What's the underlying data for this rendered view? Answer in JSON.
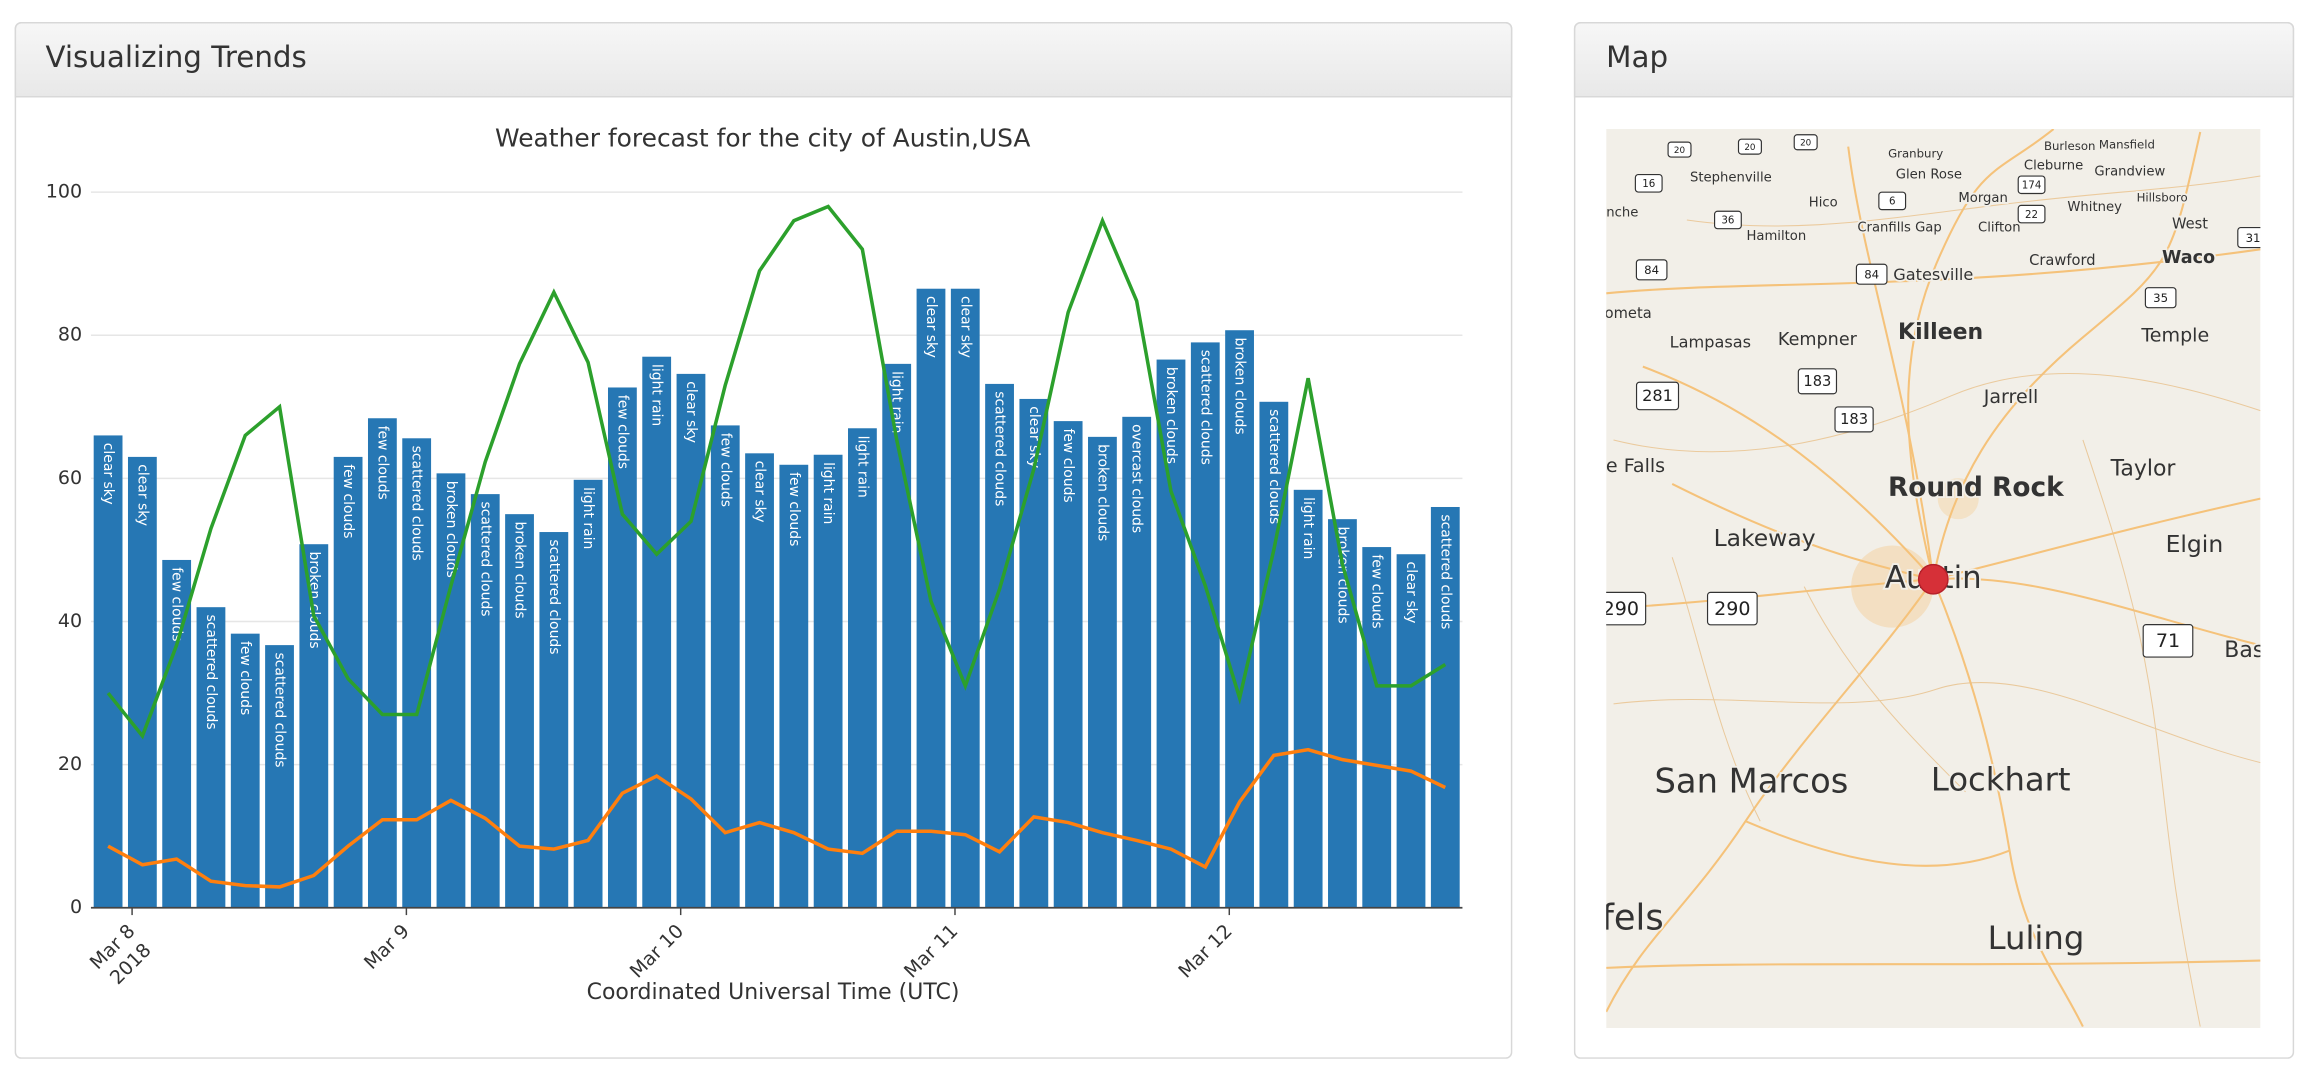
{
  "panels": {
    "left": {
      "title": "Visualizing Trends"
    },
    "right": {
      "title": "Map"
    }
  },
  "chart_data": {
    "type": "bar",
    "title": "Weather forecast for the city of Austin,USA",
    "x_label": "Coordinated Universal Time (UTC)",
    "categories": [
      null,
      null,
      null,
      null,
      null,
      null,
      null,
      null,
      null,
      null,
      null,
      null,
      null,
      null,
      null,
      null,
      null,
      null,
      null,
      null,
      null,
      null,
      null,
      null,
      null,
      null,
      null,
      null,
      null,
      null,
      null,
      null,
      null,
      null,
      null,
      null,
      null,
      null,
      null,
      null
    ],
    "xlim": [
      0,
      40
    ],
    "xticks": [
      {
        "value": 1.2,
        "label": "Mar 8",
        "sublabel": "2018"
      },
      {
        "value": 9.2,
        "label": "Mar 9"
      },
      {
        "value": 17.2,
        "label": "Mar 10"
      },
      {
        "value": 25.2,
        "label": "Mar 11"
      },
      {
        "value": 33.2,
        "label": "Mar 12"
      }
    ],
    "ylim": [
      0,
      100
    ],
    "yticks": [
      0,
      20,
      40,
      60,
      80,
      100
    ],
    "grid": true,
    "series": [
      {
        "type": "bar",
        "color": "#2677b4",
        "values": [
          66,
          63,
          48.6,
          42,
          38.3,
          36.7,
          50.8,
          63,
          68.4,
          65.6,
          60.7,
          57.8,
          55,
          52.5,
          59.8,
          72.7,
          77,
          74.6,
          67.4,
          63.5,
          61.9,
          63.3,
          67,
          76,
          86.5,
          86.5,
          73.2,
          71.1,
          68,
          65.8,
          68.6,
          76.6,
          79,
          80.7,
          70.7,
          58.4,
          54.3,
          50.4,
          49.4,
          56
        ],
        "bar_labels": [
          "clear sky",
          "clear sky",
          "few clouds",
          "scattered clouds",
          "few clouds",
          "scattered clouds",
          "broken clouds",
          "few clouds",
          "few clouds",
          "scattered clouds",
          "broken clouds",
          "scattered clouds",
          "broken clouds",
          "scattered clouds",
          "light rain",
          "few clouds",
          "light rain",
          "clear sky",
          "few clouds",
          "clear sky",
          "few clouds",
          "light rain",
          "light rain",
          "light rain",
          "clear sky",
          "clear sky",
          "scattered clouds",
          "clear sky",
          "few clouds",
          "broken clouds",
          "overcast clouds",
          "broken clouds",
          "scattered clouds",
          "broken clouds",
          "scattered clouds",
          "light rain",
          "broken clouds",
          "few clouds",
          "clear sky",
          "scattered clouds"
        ]
      },
      {
        "type": "line",
        "color": "#2ca02c",
        "values": [
          30,
          24,
          36.7,
          53,
          66,
          70,
          40.8,
          32,
          27,
          27,
          45,
          62.3,
          76,
          86,
          76.2,
          55,
          49.4,
          54,
          73,
          89,
          96,
          98,
          92,
          65.4,
          42.8,
          31,
          44.5,
          61.3,
          83.2,
          96,
          84.8,
          58.2,
          45,
          29.3,
          50,
          74,
          48,
          31,
          31,
          34
        ]
      },
      {
        "type": "line",
        "color": "#ff7f0e",
        "values": [
          8.6,
          6,
          6.8,
          3.7,
          3.1,
          2.9,
          4.5,
          8.6,
          12.3,
          12.3,
          15,
          12.5,
          8.6,
          8.2,
          9.4,
          16,
          18.4,
          15.2,
          10.5,
          11.9,
          10.5,
          8.2,
          7.6,
          10.7,
          10.7,
          10.2,
          7.8,
          12.7,
          11.9,
          10.5,
          9.4,
          8.2,
          5.7,
          14.8,
          21.3,
          22.1,
          20.7,
          19.9,
          19.1,
          16.8
        ]
      }
    ]
  },
  "map": {
    "places": [
      "Killeen",
      "Round Rock",
      "Austin",
      "Lakeway",
      "Taylor",
      "Elgin",
      "San Marcos",
      "Lockhart",
      "Luling",
      "Temple",
      "Jarrell",
      "Kempner",
      "Lampasas",
      "Gatesville",
      "Waco",
      "Crawford",
      "West",
      "Hamilton",
      "Stephenville",
      "Glen Rose",
      "Granbury",
      "Cleburne",
      "Burleson",
      "Mansfield",
      "Grandview",
      "Hillsboro",
      "Whitney",
      "Morgan",
      "Clifton",
      "Hico",
      "Cranfills Gap",
      "e Falls",
      "fels",
      "Bas",
      "ometa",
      "nche"
    ],
    "shields": [
      "281",
      "183",
      "183",
      "290",
      "290",
      "71",
      "84",
      "84",
      "35",
      "36",
      "16",
      "6",
      "22",
      "174",
      "20",
      "20",
      "20",
      "31"
    ]
  }
}
